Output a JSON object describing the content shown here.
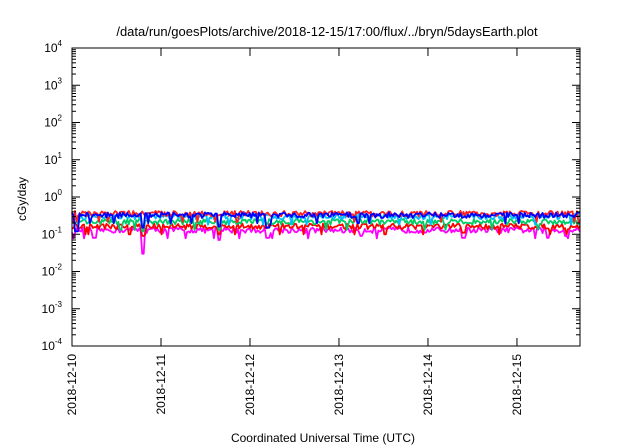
{
  "chart_data": {
    "type": "line",
    "title": "/data/run/goesPlots/archive/2018-12-15/17:00/flux/../bryn/5daysEarth.plot",
    "xlabel": "Coordinated Universal Time (UTC)",
    "ylabel": "cGy/day",
    "yscale": "log",
    "ylim": [
      0.0001,
      10000
    ],
    "xlim": [
      "2018-12-10 00:00",
      "2018-12-15 17:00"
    ],
    "grid": false,
    "legend": "none",
    "y_ticks": [
      {
        "value": 0.0001,
        "base": "10",
        "exp": "-4"
      },
      {
        "value": 0.001,
        "base": "10",
        "exp": "-3"
      },
      {
        "value": 0.01,
        "base": "10",
        "exp": "-2"
      },
      {
        "value": 0.1,
        "base": "10",
        "exp": "-1"
      },
      {
        "value": 1,
        "base": "10",
        "exp": "0"
      },
      {
        "value": 10,
        "base": "10",
        "exp": "1"
      },
      {
        "value": 100,
        "base": "10",
        "exp": "2"
      },
      {
        "value": 1000,
        "base": "10",
        "exp": "3"
      },
      {
        "value": 10000,
        "base": "10",
        "exp": "4"
      }
    ],
    "x_ticks": [
      {
        "label": "2018-12-10",
        "value": "2018-12-10 00:00"
      },
      {
        "label": "2018-12-11",
        "value": "2018-12-11 00:00"
      },
      {
        "label": "2018-12-12",
        "value": "2018-12-12 00:00"
      },
      {
        "label": "2018-12-13",
        "value": "2018-12-13 00:00"
      },
      {
        "label": "2018-12-14",
        "value": "2018-12-14 00:00"
      },
      {
        "label": "2018-12-15",
        "value": "2018-12-15 00:00"
      }
    ],
    "series": [
      {
        "color": "#ff00ff",
        "base": 0.13,
        "dips": [
          [
            0.25,
            0.08
          ],
          [
            0.8,
            0.03
          ],
          [
            1.65,
            0.07
          ],
          [
            2.2,
            0.08
          ],
          [
            3.25,
            0.09
          ],
          [
            4.4,
            0.08
          ],
          [
            5.35,
            0.08
          ],
          [
            5.55,
            0.09
          ]
        ]
      },
      {
        "color": "#ff0000",
        "base": 0.165,
        "dips": [
          [
            0.8,
            0.09
          ],
          [
            1.65,
            0.1
          ],
          [
            4.4,
            0.11
          ]
        ]
      },
      {
        "color": "#00cc66",
        "base": 0.22,
        "dips": [
          [
            0.8,
            0.12
          ],
          [
            1.65,
            0.13
          ]
        ]
      },
      {
        "color": "#00bfff",
        "base": 0.3,
        "dips": [
          [
            0.8,
            0.15
          ],
          [
            1.65,
            0.16
          ]
        ]
      },
      {
        "color": "#ff2020",
        "base": 0.36,
        "dips": []
      },
      {
        "color": "#0000ff",
        "base": 0.33,
        "dips": [
          [
            0.05,
            0.12
          ],
          [
            0.8,
            0.15
          ],
          [
            1.65,
            0.16
          ],
          [
            2.2,
            0.15
          ]
        ]
      }
    ]
  }
}
